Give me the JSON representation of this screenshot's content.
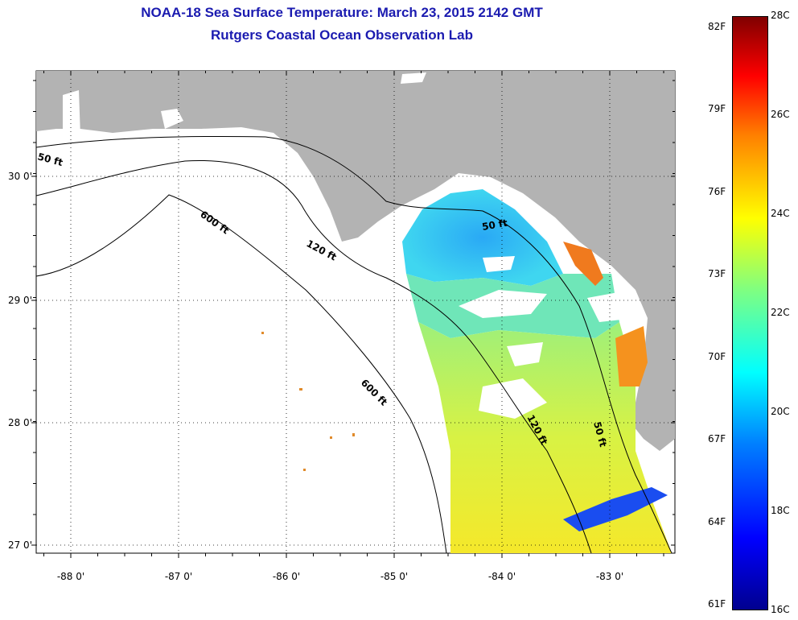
{
  "title": {
    "line1": "NOAA-18 Sea Surface Temperature:  March 23, 2015 2142 GMT",
    "line2": "Rutgers Coastal Ocean Observation Lab"
  },
  "axes": {
    "longitude_labels": [
      "-88 0'",
      "-87 0'",
      "-86 0'",
      "-85 0'",
      "-84 0'",
      "-83 0'"
    ],
    "latitude_labels": [
      "30 0'",
      "29 0'",
      "28 0'",
      "27 0'"
    ],
    "lon_range": [
      -88.33,
      -82.4
    ],
    "lat_range": [
      26.95,
      30.85
    ]
  },
  "contours": {
    "label_50": "50 ft",
    "label_120": "120 ft",
    "label_600": "600 ft"
  },
  "colorbar": {
    "fahrenheit_labels": [
      "82F",
      "79F",
      "76F",
      "73F",
      "70F",
      "67F",
      "64F",
      "61F"
    ],
    "celsius_labels": [
      "28C",
      "26C",
      "24C",
      "22C",
      "20C",
      "18C",
      "16C"
    ],
    "range_c": [
      16,
      28
    ],
    "colors": [
      "#00008f",
      "#0000ff",
      "#0080ff",
      "#00ffff",
      "#80ff80",
      "#ffff00",
      "#ff8000",
      "#ff0000",
      "#800000"
    ]
  },
  "colors": {
    "land": "#b3b3b3",
    "water_nodata": "#ffffff",
    "title": "#1b1bb0"
  }
}
